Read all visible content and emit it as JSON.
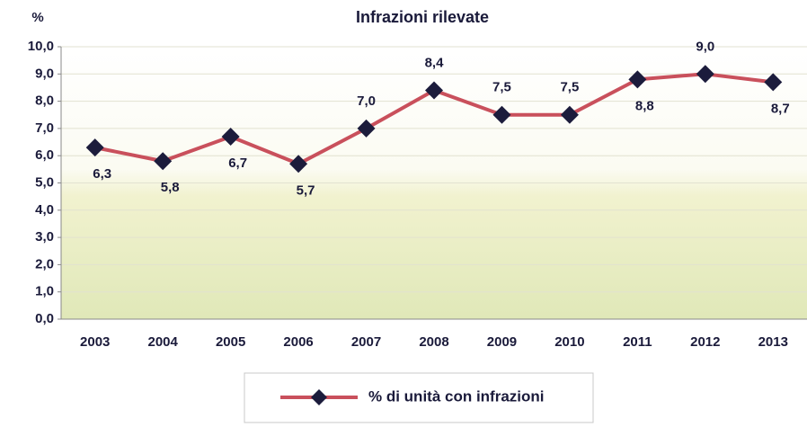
{
  "chart_data": {
    "type": "line",
    "title": "Infrazioni rilevate",
    "y_label": "%",
    "categories": [
      "2003",
      "2004",
      "2005",
      "2006",
      "2007",
      "2008",
      "2009",
      "2010",
      "2011",
      "2012",
      "2013"
    ],
    "series": [
      {
        "name": "% di unità con infrazioni",
        "color": "#c9505c",
        "marker_color": "#1c1c3c",
        "values": [
          6.3,
          5.8,
          6.7,
          5.7,
          7.0,
          8.4,
          7.5,
          7.5,
          8.8,
          9.0,
          8.7
        ],
        "value_labels": [
          "6,3",
          "5,8",
          "6,7",
          "5,7",
          "7,0",
          "8,4",
          "7,5",
          "7,5",
          "8,8",
          "9,0",
          "8,7"
        ]
      }
    ],
    "ylim": [
      0,
      10
    ],
    "yticks": [
      {
        "value": 0,
        "label": "0,0"
      },
      {
        "value": 1,
        "label": "1,0"
      },
      {
        "value": 2,
        "label": "2,0"
      },
      {
        "value": 3,
        "label": "3,0"
      },
      {
        "value": 4,
        "label": "4,0"
      },
      {
        "value": 5,
        "label": "5,0"
      },
      {
        "value": 6,
        "label": "6,0"
      },
      {
        "value": 7,
        "label": "7,0"
      },
      {
        "value": 8,
        "label": "8,0"
      },
      {
        "value": 9,
        "label": "9,0"
      },
      {
        "value": 10,
        "label": "10,0"
      }
    ],
    "grid": true,
    "legend": "bottom"
  }
}
